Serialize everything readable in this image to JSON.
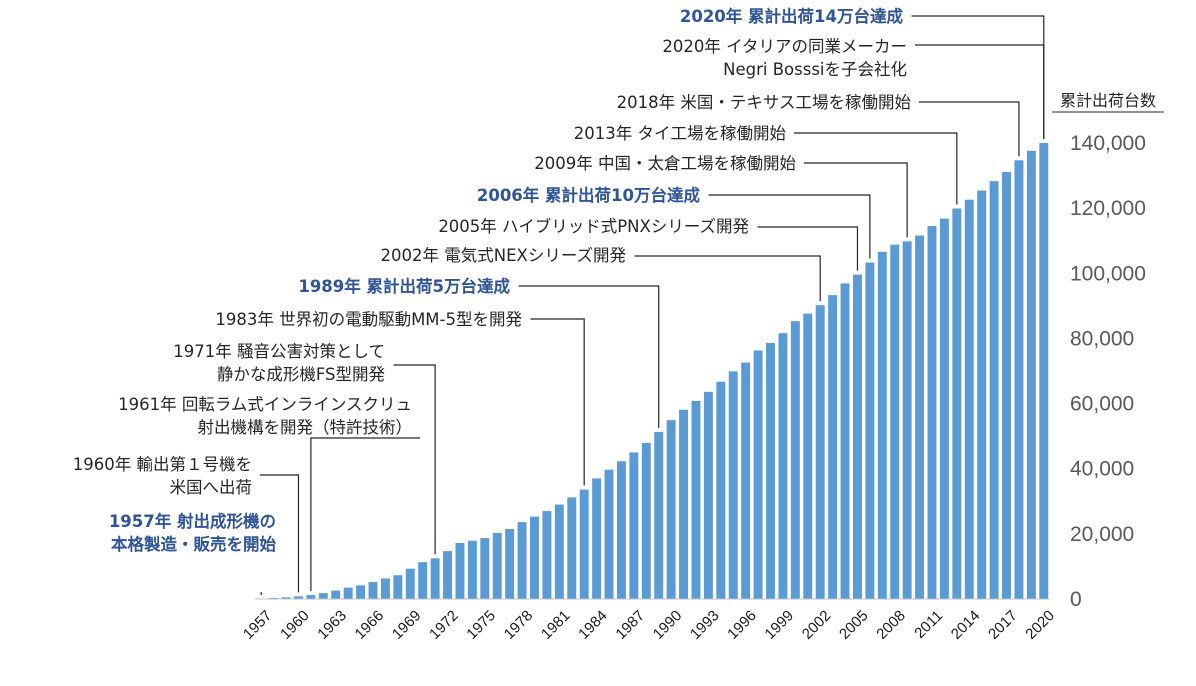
{
  "chart_data": {
    "type": "bar",
    "title": "",
    "xlabel": "",
    "ylabel": "累計出荷台数",
    "ylim": [
      0,
      140000
    ],
    "yticks": [
      "0",
      "20,000",
      "40,000",
      "60,000",
      "80,000",
      "100,000",
      "120,000",
      "140,000"
    ],
    "bar_color": "#5b9bd5",
    "highlight_color": "#2f5597",
    "grid": false,
    "categories": [
      "1957",
      "1958",
      "1959",
      "1960",
      "1961",
      "1962",
      "1963",
      "1964",
      "1965",
      "1966",
      "1967",
      "1968",
      "1969",
      "1970",
      "1971",
      "1972",
      "1973",
      "1974",
      "1975",
      "1976",
      "1977",
      "1978",
      "1979",
      "1980",
      "1981",
      "1982",
      "1983",
      "1984",
      "1985",
      "1986",
      "1987",
      "1988",
      "1989",
      "1990",
      "1991",
      "1992",
      "1993",
      "1994",
      "1995",
      "1996",
      "1997",
      "1998",
      "1999",
      "2000",
      "2001",
      "2002",
      "2003",
      "2004",
      "2005",
      "2006",
      "2007",
      "2008",
      "2009",
      "2010",
      "2011",
      "2012",
      "2013",
      "2014",
      "2015",
      "2016",
      "2017",
      "2018",
      "2019",
      "2020"
    ],
    "xtick_labels": [
      "1957",
      "1960",
      "1963",
      "1966",
      "1969",
      "1972",
      "1975",
      "1978",
      "1981",
      "1984",
      "1987",
      "1990",
      "1993",
      "1996",
      "1999",
      "2002",
      "2005",
      "2008",
      "2011",
      "2014",
      "2017",
      "2020"
    ],
    "values": [
      100,
      300,
      500,
      800,
      1200,
      1800,
      2600,
      3500,
      4200,
      5200,
      6300,
      7300,
      9300,
      11300,
      12500,
      14700,
      17200,
      17900,
      18700,
      20300,
      21500,
      23600,
      25300,
      27000,
      29000,
      31200,
      33600,
      37000,
      39700,
      42300,
      45000,
      47900,
      51300,
      54900,
      58100,
      60800,
      63600,
      66700,
      69900,
      72600,
      76300,
      78600,
      81600,
      85300,
      87600,
      90200,
      93300,
      96900,
      99600,
      103300,
      106600,
      108800,
      109800,
      111600,
      114500,
      116800,
      119900,
      122600,
      125400,
      128300,
      131100,
      134700,
      137600,
      140000
    ],
    "annotations": [
      {
        "lines": [
          "1957年 射出成形機の",
          "本格製造・販売を開始"
        ],
        "year": "1957",
        "highlight": true
      },
      {
        "lines": [
          "1960年 輸出第１号機を",
          "米国へ出荷"
        ],
        "year": "1960",
        "highlight": false
      },
      {
        "lines": [
          "1961年 回転ラム式インラインスクリュ",
          "射出機構を開発（特許技術）"
        ],
        "year": "1961",
        "highlight": false
      },
      {
        "lines": [
          "1971年 騒音公害対策として",
          "静かな成形機FS型開発"
        ],
        "year": "1971",
        "highlight": false
      },
      {
        "lines": [
          "1983年 世界初の電動駆動MM-5型を開発"
        ],
        "year": "1983",
        "highlight": false
      },
      {
        "lines": [
          "1989年 累計出荷5万台達成"
        ],
        "year": "1989",
        "highlight": true
      },
      {
        "lines": [
          "2002年 電気式NEXシリーズ開発"
        ],
        "year": "2002",
        "highlight": false
      },
      {
        "lines": [
          "2005年 ハイブリッド式PNXシリーズ開発"
        ],
        "year": "2005",
        "highlight": false
      },
      {
        "lines": [
          "2006年 累計出荷10万台達成"
        ],
        "year": "2006",
        "highlight": true
      },
      {
        "lines": [
          "2009年 中国・太倉工場を稼働開始"
        ],
        "year": "2009",
        "highlight": false
      },
      {
        "lines": [
          "2013年 タイ工場を稼働開始"
        ],
        "year": "2013",
        "highlight": false
      },
      {
        "lines": [
          "2018年 米国・テキサス工場を稼働開始"
        ],
        "year": "2018",
        "highlight": false
      },
      {
        "lines": [
          "2020年 イタリアの同業メーカー",
          "Negri Bosssiを子会社化"
        ],
        "year": "2020",
        "highlight": false
      },
      {
        "lines": [
          "2020年 累計出荷14万台達成"
        ],
        "year": "2020",
        "highlight": true
      }
    ]
  }
}
